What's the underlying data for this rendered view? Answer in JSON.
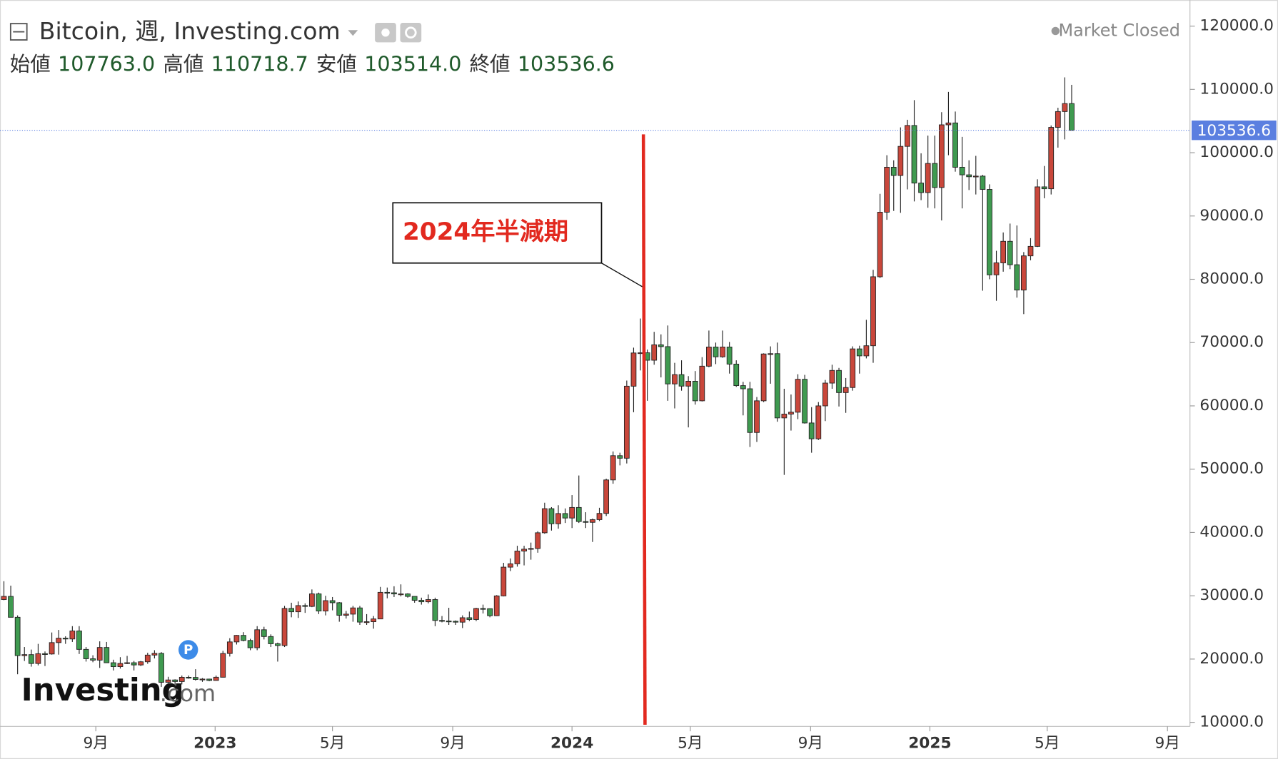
{
  "chart_data": {
    "type": "candlestick",
    "title": "Bitcoin, 週, Investing.com",
    "status": "Market Closed",
    "header": [
      {
        "name": "始値",
        "value": {
          "value": 107763,
          "label": "107763.0"
        }
      },
      {
        "name": "高値",
        "value": 110718.7
      },
      {
        "name": "安値",
        "value": {
          "value": 103514,
          "label": "103514.0"
        }
      },
      {
        "name": "終値",
        "value": 103536.6
      }
    ],
    "annotation": {
      "text": "2024年半減期",
      "x": "2024-03-14",
      "color": "#e2291f"
    },
    "logo": [
      "Investing",
      ".com"
    ],
    "badge": "P",
    "up_color": "#c9473b",
    "down_color": "#3f9a50",
    "last_price_color": "#5b7fe0",
    "grid": false,
    "xlim": [
      "2022-05-26",
      "2025-09-24"
    ],
    "xticks": [
      {
        "value": "2022-09-01",
        "label": "9月"
      },
      {
        "value": "2023-01-01",
        "label": "2023"
      },
      {
        "value": "2023-05-01",
        "label": "5月"
      },
      {
        "value": "2023-09-01",
        "label": "9月"
      },
      {
        "value": "2024-01-01",
        "label": "2024"
      },
      {
        "value": "2024-05-01",
        "label": "5月"
      },
      {
        "value": "2024-09-01",
        "label": "9月"
      },
      {
        "value": "2025-01-01",
        "label": "2025"
      },
      {
        "value": "2025-05-01",
        "label": "5月"
      },
      {
        "value": "2025-09-01",
        "label": "9月"
      }
    ],
    "ylim": [
      9360,
      124120
    ],
    "yticks": [
      {
        "value": 10000,
        "label": "10000.0"
      },
      {
        "value": 20000,
        "label": "20000.0"
      },
      {
        "value": 30000,
        "label": "30000.0"
      },
      {
        "value": 40000,
        "label": "40000.0"
      },
      {
        "value": 50000,
        "label": "50000.0"
      },
      {
        "value": 60000,
        "label": "60000.0"
      },
      {
        "value": 70000,
        "label": "70000.0"
      },
      {
        "value": 80000,
        "label": "80000.0"
      },
      {
        "value": 90000,
        "label": "90000.0"
      },
      {
        "value": 100000,
        "label": "100000.0"
      },
      {
        "value": 110000,
        "label": "110000.0"
      },
      {
        "value": 120000,
        "label": "120000.0"
      }
    ],
    "x": [
      "2022-05-30",
      "2022-06-06",
      "2022-06-13",
      "2022-06-20",
      "2022-06-27",
      "2022-07-04",
      "2022-07-11",
      "2022-07-18",
      "2022-07-25",
      "2022-08-01",
      "2022-08-08",
      "2022-08-15",
      "2022-08-22",
      "2022-08-29",
      "2022-09-05",
      "2022-09-12",
      "2022-09-19",
      "2022-09-26",
      "2022-10-03",
      "2022-10-10",
      "2022-10-17",
      "2022-10-24",
      "2022-10-31",
      "2022-11-07",
      "2022-11-14",
      "2022-11-21",
      "2022-11-28",
      "2022-12-05",
      "2022-12-12",
      "2022-12-19",
      "2022-12-26",
      "2023-01-02",
      "2023-01-09",
      "2023-01-16",
      "2023-01-23",
      "2023-01-30",
      "2023-02-06",
      "2023-02-13",
      "2023-02-20",
      "2023-02-27",
      "2023-03-06",
      "2023-03-13",
      "2023-03-20",
      "2023-03-27",
      "2023-04-03",
      "2023-04-10",
      "2023-04-17",
      "2023-04-24",
      "2023-05-01",
      "2023-05-08",
      "2023-05-15",
      "2023-05-22",
      "2023-05-29",
      "2023-06-05",
      "2023-06-12",
      "2023-06-19",
      "2023-06-26",
      "2023-07-03",
      "2023-07-10",
      "2023-07-17",
      "2023-07-24",
      "2023-07-31",
      "2023-08-07",
      "2023-08-14",
      "2023-08-21",
      "2023-08-28",
      "2023-09-04",
      "2023-09-11",
      "2023-09-18",
      "2023-09-25",
      "2023-10-02",
      "2023-10-09",
      "2023-10-16",
      "2023-10-23",
      "2023-10-30",
      "2023-11-06",
      "2023-11-13",
      "2023-11-20",
      "2023-11-27",
      "2023-12-04",
      "2023-12-11",
      "2023-12-18",
      "2023-12-25",
      "2024-01-01",
      "2024-01-08",
      "2024-01-15",
      "2024-01-22",
      "2024-01-29",
      "2024-02-05",
      "2024-02-12",
      "2024-02-19",
      "2024-02-26",
      "2024-03-04",
      "2024-03-11",
      "2024-03-18",
      "2024-03-25",
      "2024-04-01",
      "2024-04-08",
      "2024-04-15",
      "2024-04-22",
      "2024-04-29",
      "2024-05-06",
      "2024-05-13",
      "2024-05-20",
      "2024-05-27",
      "2024-06-03",
      "2024-06-10",
      "2024-06-17",
      "2024-06-24",
      "2024-07-01",
      "2024-07-08",
      "2024-07-15",
      "2024-07-22",
      "2024-07-29",
      "2024-08-05",
      "2024-08-12",
      "2024-08-19",
      "2024-08-26",
      "2024-09-02",
      "2024-09-09",
      "2024-09-16",
      "2024-09-23",
      "2024-09-30",
      "2024-10-07",
      "2024-10-14",
      "2024-10-21",
      "2024-10-28",
      "2024-11-04",
      "2024-11-11",
      "2024-11-18",
      "2024-11-25",
      "2024-12-02",
      "2024-12-09",
      "2024-12-16",
      "2024-12-23",
      "2024-12-30",
      "2025-01-06",
      "2025-01-13",
      "2025-01-20",
      "2025-01-27",
      "2025-02-03",
      "2025-02-10",
      "2025-02-17",
      "2025-02-24",
      "2025-03-03",
      "2025-03-10",
      "2025-03-17",
      "2025-03-24",
      "2025-03-31",
      "2025-04-07",
      "2025-04-14",
      "2025-04-21",
      "2025-04-28",
      "2025-05-05",
      "2025-05-12",
      "2025-05-19",
      "2025-05-26"
    ],
    "open": [
      29400,
      29900,
      26600,
      20550,
      20700,
      19300,
      20850,
      20800,
      22600,
      23300,
      23170,
      24440,
      21530,
      20050,
      19830,
      21830,
      19420,
      18800,
      19310,
      19420,
      19070,
      19570,
      20630,
      20900,
      16330,
      16700,
      16450,
      17120,
      17100,
      16780,
      16840,
      16620,
      17130,
      20880,
      22710,
      23740,
      22940,
      21790,
      24630,
      23560,
      22420,
      22140,
      28000,
      27470,
      28450,
      28320,
      30300,
      27590,
      29230,
      28900,
      26920,
      27100,
      28080,
      25840,
      25900,
      26340,
      30540,
      30470,
      30290,
      30290,
      29900,
      29280,
      29050,
      29400,
      26100,
      26010,
      25970,
      25830,
      26530,
      26250,
      27990,
      27960,
      26850,
      29980,
      34520,
      35050,
      37060,
      37360,
      37470,
      39950,
      43760,
      41380,
      42990,
      42280,
      43950,
      41730,
      41600,
      42030,
      43010,
      48300,
      52130,
      51730,
      63110,
      68360,
      68390,
      67210,
      69650,
      69360,
      63470,
      64940,
      63120,
      63890,
      60800,
      66270,
      69300,
      67750,
      69300,
      66600,
      63200,
      62700,
      55800,
      60800,
      68200,
      68250,
      58100,
      58700,
      59000,
      64200,
      57300,
      54800,
      60000,
      63600,
      65600,
      62100,
      62900,
      69000,
      67900,
      69500,
      80400,
      90600,
      97700,
      96400,
      101000,
      104300,
      95200,
      93700,
      98300,
      94500,
      104400,
      104700,
      97700,
      96500,
      96200,
      96300,
      94200,
      80700,
      82600,
      86000,
      82300,
      78300,
      83700,
      85200,
      94600,
      94300,
      104000,
      106500,
      107763
    ],
    "high": [
      32300,
      31600,
      26900,
      21900,
      21500,
      22400,
      21200,
      24200,
      24600,
      23600,
      25200,
      25200,
      21900,
      20600,
      22800,
      22700,
      19900,
      20300,
      20500,
      19700,
      19700,
      21000,
      21400,
      21100,
      17200,
      16800,
      17400,
      17400,
      18400,
      17000,
      16900,
      17400,
      21300,
      23300,
      23800,
      24250,
      23200,
      25200,
      25100,
      23900,
      22600,
      28400,
      28900,
      29100,
      28800,
      31000,
      30500,
      30000,
      29800,
      29000,
      27600,
      28400,
      28400,
      27100,
      26800,
      31400,
      31300,
      31500,
      31800,
      30400,
      29900,
      29700,
      30200,
      29700,
      26800,
      28100,
      26100,
      26900,
      27500,
      28100,
      28600,
      28000,
      30100,
      35200,
      35900,
      37900,
      37900,
      38400,
      40200,
      44700,
      44000,
      44300,
      43800,
      45900,
      49000,
      43200,
      42200,
      43900,
      48500,
      52800,
      52600,
      64000,
      69200,
      73800,
      68900,
      71700,
      71300,
      72700,
      66800,
      67200,
      64700,
      65500,
      67700,
      71900,
      70000,
      71900,
      70100,
      67200,
      63800,
      63800,
      61400,
      68300,
      69400,
      70000,
      62700,
      61800,
      65000,
      64900,
      59800,
      60600,
      64100,
      66500,
      66000,
      64400,
      69400,
      69500,
      73600,
      81500,
      93500,
      99600,
      98800,
      104000,
      105200,
      108300,
      99900,
      102700,
      102700,
      106400,
      109600,
      106500,
      102500,
      98800,
      99500,
      96500,
      95000,
      84500,
      87400,
      88800,
      88500,
      84300,
      86500,
      95800,
      97900,
      104300,
      107100,
      111900,
      110718.7
    ],
    "low": [
      29300,
      26600,
      17600,
      19700,
      18800,
      19000,
      18900,
      20700,
      20700,
      22400,
      22700,
      20800,
      19600,
      19500,
      18600,
      19400,
      18200,
      18500,
      19200,
      18200,
      18900,
      19250,
      20100,
      15600,
      16200,
      15500,
      16000,
      16900,
      16600,
      16400,
      16500,
      16600,
      17100,
      20400,
      22300,
      22800,
      21400,
      21400,
      23100,
      21900,
      19600,
      21900,
      26600,
      26500,
      27300,
      28200,
      27100,
      26900,
      27700,
      25900,
      26400,
      25900,
      25400,
      25400,
      24800,
      26300,
      29600,
      29800,
      29900,
      29700,
      28900,
      28600,
      28800,
      25200,
      25800,
      25400,
      25400,
      24900,
      26000,
      26000,
      27200,
      26600,
      26800,
      29900,
      33900,
      34600,
      34800,
      35700,
      36800,
      39800,
      40300,
      40600,
      41500,
      40700,
      41500,
      40700,
      38500,
      41800,
      42600,
      47700,
      50600,
      50900,
      59000,
      65600,
      60800,
      66500,
      64500,
      60800,
      59600,
      62400,
      56600,
      60200,
      60700,
      66100,
      66600,
      67600,
      65100,
      63000,
      58500,
      53500,
      54300,
      60600,
      63500,
      57500,
      49100,
      56100,
      57900,
      57200,
      52600,
      54600,
      57600,
      62700,
      59900,
      58900,
      62400,
      65100,
      67500,
      66800,
      80200,
      89400,
      90800,
      90500,
      94200,
      92300,
      92500,
      91300,
      91200,
      89300,
      99600,
      97000,
      91200,
      94100,
      93400,
      78200,
      80000,
      76600,
      81200,
      81600,
      77100,
      74500,
      83000,
      85100,
      92800,
      93400,
      100800,
      102100,
      103514
    ],
    "close": [
      29900,
      26600,
      20550,
      20700,
      19300,
      20850,
      20800,
      22600,
      23300,
      23170,
      24440,
      21530,
      20050,
      19830,
      21830,
      19420,
      18800,
      19310,
      19420,
      19070,
      19570,
      20630,
      20900,
      16330,
      16700,
      16450,
      17120,
      17100,
      16780,
      16840,
      16620,
      17130,
      20880,
      22710,
      23740,
      22940,
      21790,
      24630,
      23560,
      22420,
      22140,
      28000,
      27470,
      28450,
      28320,
      30300,
      27590,
      29230,
      28900,
      26920,
      27100,
      28080,
      25840,
      25900,
      26340,
      30540,
      30470,
      30290,
      30290,
      29900,
      29280,
      29050,
      29400,
      26100,
      26010,
      25970,
      25830,
      26530,
      26250,
      27990,
      27960,
      26850,
      29980,
      34520,
      35050,
      37060,
      37360,
      37470,
      39950,
      43760,
      41380,
      42990,
      42280,
      43950,
      41730,
      41600,
      42030,
      43010,
      48300,
      52130,
      51730,
      63110,
      68360,
      68390,
      67210,
      69650,
      69360,
      63470,
      64940,
      63120,
      63890,
      60800,
      66270,
      69300,
      67750,
      69300,
      66600,
      63200,
      62700,
      55800,
      60800,
      68200,
      68250,
      58100,
      58700,
      59000,
      64200,
      57300,
      54800,
      60000,
      63600,
      65600,
      62100,
      62900,
      69000,
      67900,
      69500,
      80400,
      90600,
      97700,
      96400,
      101000,
      104300,
      95200,
      93700,
      98300,
      94500,
      104400,
      104700,
      97700,
      96500,
      96200,
      96300,
      94200,
      80700,
      82600,
      86000,
      82300,
      78300,
      83700,
      85200,
      94600,
      94300,
      104000,
      106500,
      107763,
      103536.6
    ]
  }
}
